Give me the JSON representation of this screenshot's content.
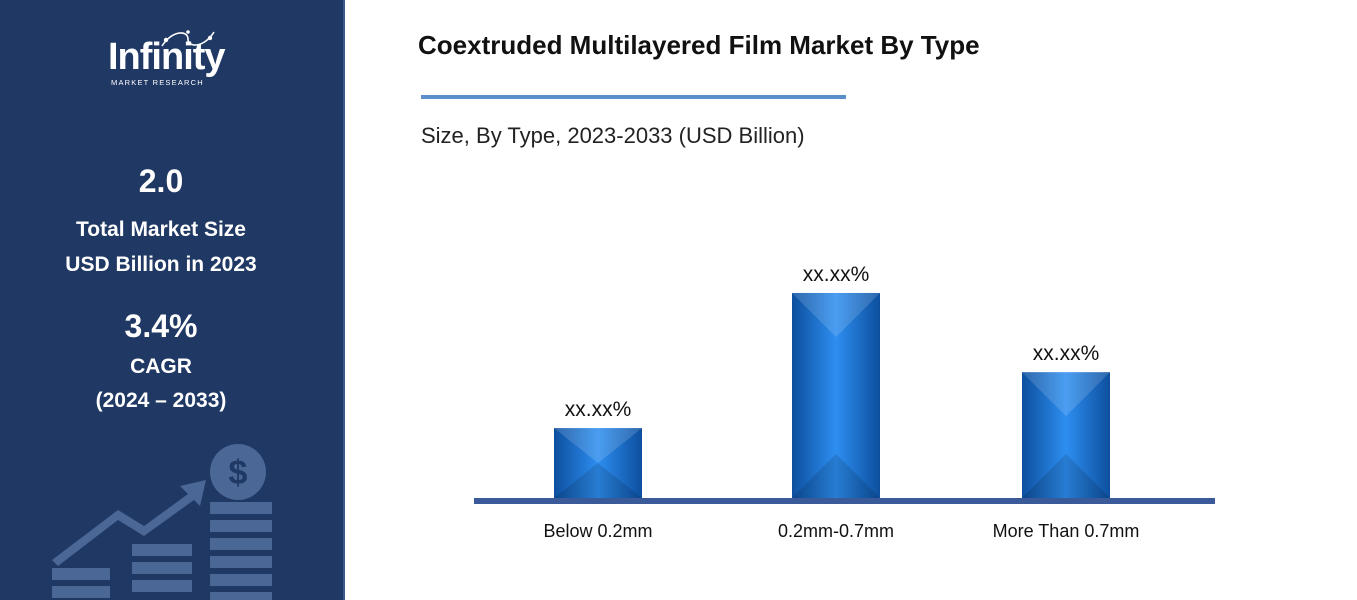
{
  "logo": {
    "name": "Infinity",
    "tagline": "MARKET RESEARCH"
  },
  "sidebar": {
    "market_size_value": "2.0",
    "market_size_label_1": "Total Market Size",
    "market_size_label_2": "USD Billion in 2023",
    "cagr_value": "3.4%",
    "cagr_label": "CAGR",
    "cagr_period": "(2024 – 2033)"
  },
  "header": {
    "title": "Coextruded Multilayered Film Market By Type",
    "subtitle": "Size, By Type, 2023-2033 (USD Billion)"
  },
  "colors": {
    "sidebar_bg": "#1f3864",
    "bar": "#1a73d1",
    "baseline": "#3a5a9a",
    "accent_rule": "#5b8fc9"
  },
  "chart_data": {
    "type": "bar",
    "categories": [
      "Below 0.2mm",
      "0.2mm-0.7mm",
      "More Than 0.7mm"
    ],
    "values": [
      30,
      88,
      54
    ],
    "data_labels": [
      "xx.xx%",
      "xx.xx%",
      "xx.xx%"
    ],
    "ylim": [
      0,
      100
    ],
    "grid": false
  }
}
